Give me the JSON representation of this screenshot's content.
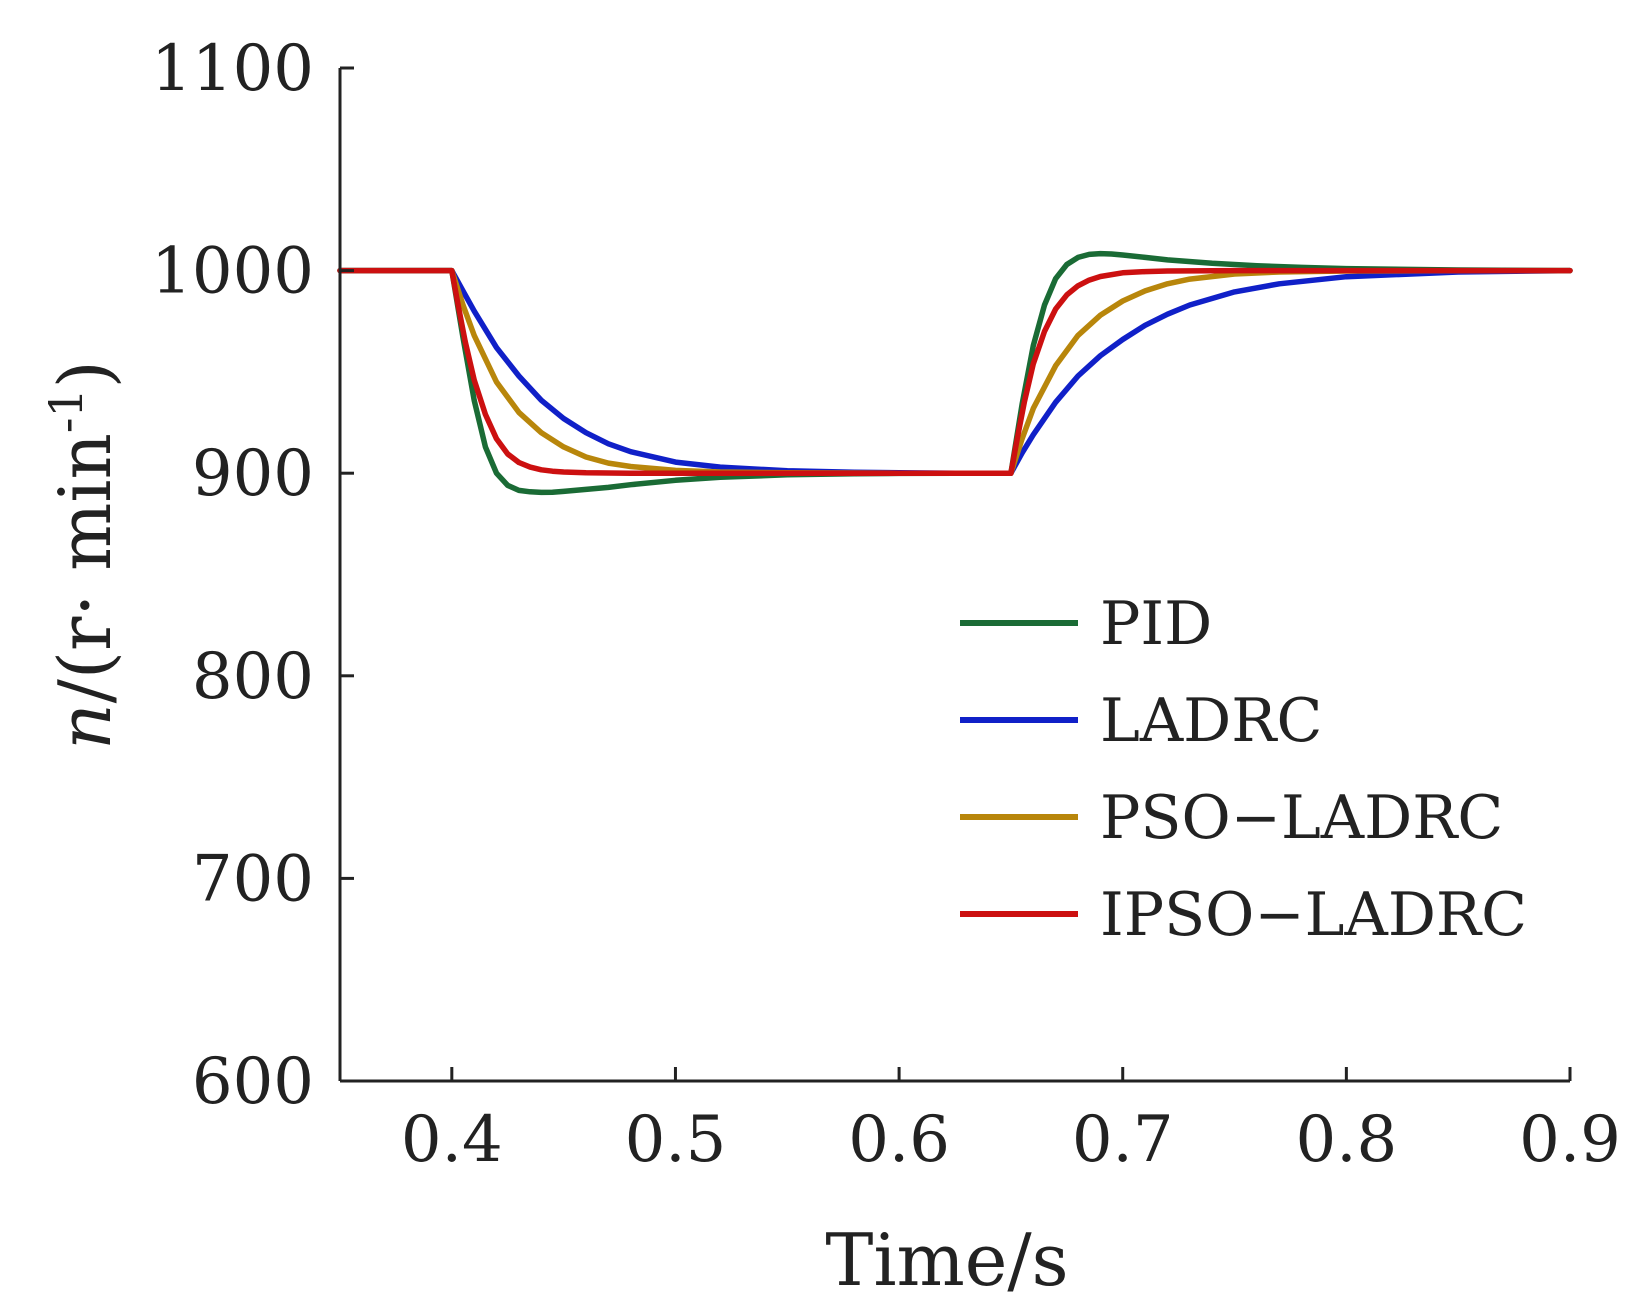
{
  "chart_data": {
    "type": "line",
    "title": "",
    "xlabel": "Time/s",
    "ylabel_italic": "n",
    "ylabel_rest": "/(r· min",
    "ylabel_sup": "-1",
    "ylabel_close": ")",
    "xlim": [
      0.35,
      0.9
    ],
    "ylim": [
      600,
      1100
    ],
    "xticks": [
      0.4,
      0.5,
      0.6,
      0.7,
      0.8,
      0.9
    ],
    "xtick_labels": [
      "0.4",
      "0.5",
      "0.6",
      "0.7",
      "0.8",
      "0.9"
    ],
    "yticks": [
      600,
      700,
      800,
      900,
      1000,
      1100
    ],
    "ytick_labels": [
      "600",
      "700",
      "800",
      "900",
      "1000",
      "1100"
    ],
    "grid": false,
    "legend_position": "center-right",
    "series": [
      {
        "name": "PID",
        "color": "#1a6b35",
        "x": [
          0.35,
          0.4,
          0.405,
          0.41,
          0.415,
          0.42,
          0.425,
          0.43,
          0.435,
          0.44,
          0.445,
          0.45,
          0.46,
          0.47,
          0.48,
          0.5,
          0.52,
          0.55,
          0.58,
          0.6,
          0.625,
          0.65,
          0.655,
          0.66,
          0.665,
          0.67,
          0.675,
          0.68,
          0.685,
          0.69,
          0.695,
          0.7,
          0.71,
          0.72,
          0.74,
          0.76,
          0.78,
          0.8,
          0.85,
          0.9
        ],
        "y": [
          1000,
          1000,
          967,
          936,
          913,
          900,
          894,
          891.5,
          890.8,
          890.5,
          890.6,
          891,
          892,
          893,
          894.3,
          896.5,
          898,
          899.2,
          899.7,
          899.9,
          900,
          900,
          934,
          963,
          983,
          996,
          1003,
          1006.5,
          1008,
          1008.4,
          1008.2,
          1007.7,
          1006.5,
          1005.3,
          1003.6,
          1002.4,
          1001.6,
          1001,
          1000.3,
          1000
        ]
      },
      {
        "name": "LADRC",
        "color": "#1020c8",
        "x": [
          0.35,
          0.4,
          0.405,
          0.41,
          0.42,
          0.43,
          0.44,
          0.45,
          0.46,
          0.47,
          0.48,
          0.5,
          0.52,
          0.55,
          0.58,
          0.6,
          0.625,
          0.65,
          0.655,
          0.66,
          0.67,
          0.68,
          0.69,
          0.7,
          0.71,
          0.72,
          0.73,
          0.75,
          0.77,
          0.8,
          0.85,
          0.9
        ],
        "y": [
          1000,
          1000,
          990,
          980,
          962,
          948,
          936,
          927,
          920,
          914.5,
          910.6,
          905.5,
          903,
          901.2,
          900.5,
          900.2,
          900,
          900,
          910,
          919,
          935,
          948,
          958,
          966,
          973,
          978.5,
          983,
          989.5,
          993.5,
          997,
          999.3,
          1000
        ]
      },
      {
        "name": "PSO−LADRC",
        "color": "#b8860b",
        "x": [
          0.35,
          0.4,
          0.405,
          0.41,
          0.42,
          0.43,
          0.44,
          0.45,
          0.46,
          0.47,
          0.48,
          0.5,
          0.52,
          0.55,
          0.6,
          0.625,
          0.65,
          0.655,
          0.66,
          0.67,
          0.68,
          0.69,
          0.7,
          0.71,
          0.72,
          0.73,
          0.75,
          0.77,
          0.8,
          0.85,
          0.9
        ],
        "y": [
          1000,
          1000,
          983,
          968,
          945,
          930,
          920,
          913,
          908,
          905,
          903.3,
          901.4,
          900.6,
          900.2,
          900,
          900,
          900,
          917,
          932,
          953,
          968,
          978,
          985,
          990,
          993.5,
          995.8,
          998.3,
          999.3,
          999.8,
          1000,
          1000
        ]
      },
      {
        "name": "IPSO−LADRC",
        "color": "#cc1010",
        "x": [
          0.35,
          0.4,
          0.403,
          0.406,
          0.41,
          0.415,
          0.42,
          0.425,
          0.43,
          0.435,
          0.44,
          0.445,
          0.45,
          0.46,
          0.47,
          0.48,
          0.5,
          0.55,
          0.6,
          0.625,
          0.65,
          0.653,
          0.656,
          0.66,
          0.665,
          0.67,
          0.675,
          0.68,
          0.685,
          0.69,
          0.7,
          0.71,
          0.72,
          0.75,
          0.8,
          0.9
        ],
        "y": [
          1000,
          1000,
          982,
          965,
          946,
          929,
          917,
          909.5,
          905.3,
          903,
          901.7,
          901,
          900.6,
          900.2,
          900.1,
          900,
          900,
          900,
          900,
          900,
          900,
          918,
          935,
          954,
          970,
          981,
          988,
          992.5,
          995.3,
          997.1,
          998.9,
          999.5,
          999.8,
          1000,
          1000,
          1000
        ]
      }
    ]
  }
}
